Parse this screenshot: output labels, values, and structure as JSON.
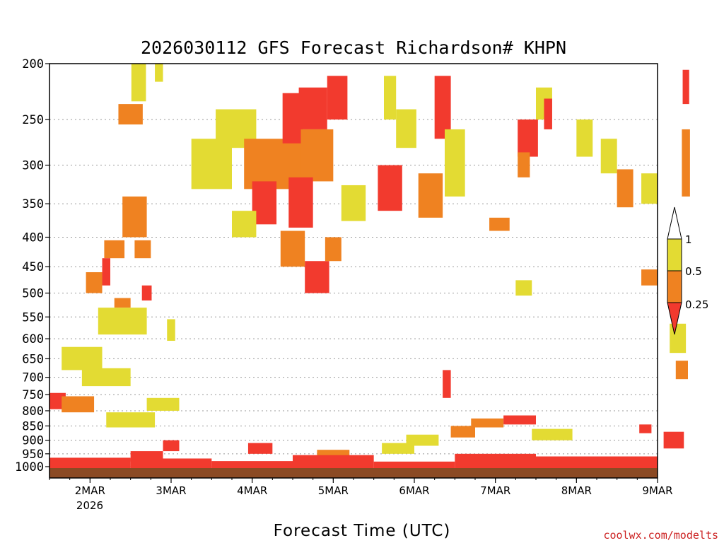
{
  "chart_data": {
    "type": "heatmap",
    "title": "2026030112 GFS Forecast Richardson# KHPN",
    "xlabel": "Forecast Time (UTC)",
    "ylabel": "",
    "credit": "coolwx.com/modelts",
    "x_range": [
      "2026-03-01T12",
      "2026-03-09T00"
    ],
    "x_ticks": [
      "2MAR",
      "3MAR",
      "4MAR",
      "5MAR",
      "6MAR",
      "7MAR",
      "8MAR",
      "9MAR"
    ],
    "x_tick_year": "2026",
    "y_ticks": [
      200,
      250,
      300,
      350,
      400,
      450,
      500,
      550,
      600,
      650,
      700,
      750,
      800,
      850,
      900,
      950,
      1000
    ],
    "y_range": [
      200,
      1000
    ],
    "y_scale": "log-pressure",
    "colorbar": {
      "ticks": [
        "1",
        "0.5",
        "0.25"
      ],
      "bins": [
        {
          "label": "<0.25",
          "color": "#f23a2e"
        },
        {
          "label": "0.25-0.5",
          "color": "#ef8221"
        },
        {
          "label": "0.5-1",
          "color": "#e3db33"
        },
        {
          "label": ">1",
          "color": "#ffffff"
        }
      ]
    },
    "ground_color": "#8b4a24",
    "grid": "dotted horizontal",
    "cells": [
      {
        "t": 1.1,
        "p": 215,
        "dt": 0.18,
        "dp": 35,
        "bin": "0.5-1"
      },
      {
        "t": 1.0,
        "p": 245,
        "dt": 0.3,
        "dp": 20,
        "bin": "0.25-0.5"
      },
      {
        "t": 1.35,
        "p": 205,
        "dt": 0.1,
        "dp": 20,
        "bin": "0.5-1"
      },
      {
        "t": 1.05,
        "p": 370,
        "dt": 0.3,
        "dp": 60,
        "bin": "0.25-0.5"
      },
      {
        "t": 0.8,
        "p": 420,
        "dt": 0.25,
        "dp": 30,
        "bin": "0.25-0.5"
      },
      {
        "t": 1.15,
        "p": 420,
        "dt": 0.2,
        "dp": 30,
        "bin": "0.25-0.5"
      },
      {
        "t": 0.55,
        "p": 480,
        "dt": 0.2,
        "dp": 40,
        "bin": "0.25-0.5"
      },
      {
        "t": 0.7,
        "p": 460,
        "dt": 0.1,
        "dp": 50,
        "bin": "<0.25"
      },
      {
        "t": 1.2,
        "p": 500,
        "dt": 0.12,
        "dp": 30,
        "bin": "<0.25"
      },
      {
        "t": 0.9,
        "p": 520,
        "dt": 0.2,
        "dp": 20,
        "bin": "0.25-0.5"
      },
      {
        "t": 0.9,
        "p": 560,
        "dt": 0.6,
        "dp": 60,
        "bin": "0.5-1"
      },
      {
        "t": 0.4,
        "p": 650,
        "dt": 0.5,
        "dp": 60,
        "bin": "0.5-1"
      },
      {
        "t": 0.7,
        "p": 700,
        "dt": 0.6,
        "dp": 50,
        "bin": "0.5-1"
      },
      {
        "t": 0.1,
        "p": 770,
        "dt": 0.2,
        "dp": 50,
        "bin": "<0.25"
      },
      {
        "t": 0.35,
        "p": 780,
        "dt": 0.4,
        "dp": 50,
        "bin": "0.25-0.5"
      },
      {
        "t": 1.0,
        "p": 830,
        "dt": 0.6,
        "dp": 50,
        "bin": "0.5-1"
      },
      {
        "t": 1.4,
        "p": 780,
        "dt": 0.4,
        "dp": 40,
        "bin": "0.5-1"
      },
      {
        "t": 1.5,
        "p": 920,
        "dt": 0.2,
        "dp": 40,
        "bin": "<0.25"
      },
      {
        "t": 1.2,
        "p": 960,
        "dt": 0.4,
        "dp": 40,
        "bin": "<0.25"
      },
      {
        "t": 2.0,
        "p": 300,
        "dt": 0.5,
        "dp": 60,
        "bin": "0.5-1"
      },
      {
        "t": 2.3,
        "p": 260,
        "dt": 0.5,
        "dp": 40,
        "bin": "0.5-1"
      },
      {
        "t": 2.8,
        "p": 300,
        "dt": 0.8,
        "dp": 60,
        "bin": "0.25-0.5"
      },
      {
        "t": 3.0,
        "p": 250,
        "dt": 0.25,
        "dp": 50,
        "bin": "<0.25"
      },
      {
        "t": 3.25,
        "p": 240,
        "dt": 0.35,
        "dp": 40,
        "bin": "<0.25"
      },
      {
        "t": 3.55,
        "p": 230,
        "dt": 0.25,
        "dp": 40,
        "bin": "<0.25"
      },
      {
        "t": 3.3,
        "p": 290,
        "dt": 0.4,
        "dp": 60,
        "bin": "0.25-0.5"
      },
      {
        "t": 2.65,
        "p": 350,
        "dt": 0.3,
        "dp": 60,
        "bin": "<0.25"
      },
      {
        "t": 3.1,
        "p": 350,
        "dt": 0.3,
        "dp": 70,
        "bin": "<0.25"
      },
      {
        "t": 2.4,
        "p": 380,
        "dt": 0.3,
        "dp": 40,
        "bin": "0.5-1"
      },
      {
        "t": 3.0,
        "p": 420,
        "dt": 0.3,
        "dp": 60,
        "bin": "0.25-0.5"
      },
      {
        "t": 3.3,
        "p": 470,
        "dt": 0.3,
        "dp": 60,
        "bin": "<0.25"
      },
      {
        "t": 3.5,
        "p": 420,
        "dt": 0.2,
        "dp": 40,
        "bin": "0.25-0.5"
      },
      {
        "t": 3.75,
        "p": 350,
        "dt": 0.3,
        "dp": 50,
        "bin": "0.5-1"
      },
      {
        "t": 4.2,
        "p": 330,
        "dt": 0.3,
        "dp": 60,
        "bin": "<0.25"
      },
      {
        "t": 4.4,
        "p": 260,
        "dt": 0.25,
        "dp": 40,
        "bin": "0.5-1"
      },
      {
        "t": 4.2,
        "p": 230,
        "dt": 0.15,
        "dp": 40,
        "bin": "0.5-1"
      },
      {
        "t": 4.7,
        "p": 340,
        "dt": 0.3,
        "dp": 60,
        "bin": "0.25-0.5"
      },
      {
        "t": 4.85,
        "p": 240,
        "dt": 0.2,
        "dp": 60,
        "bin": "<0.25"
      },
      {
        "t": 5.0,
        "p": 300,
        "dt": 0.25,
        "dp": 80,
        "bin": "0.5-1"
      },
      {
        "t": 5.55,
        "p": 380,
        "dt": 0.25,
        "dp": 20,
        "bin": "0.25-0.5"
      },
      {
        "t": 5.9,
        "p": 270,
        "dt": 0.25,
        "dp": 40,
        "bin": "<0.25"
      },
      {
        "t": 6.1,
        "p": 235,
        "dt": 0.2,
        "dp": 30,
        "bin": "0.5-1"
      },
      {
        "t": 5.85,
        "p": 300,
        "dt": 0.15,
        "dp": 30,
        "bin": "0.25-0.5"
      },
      {
        "t": 6.15,
        "p": 245,
        "dt": 0.1,
        "dp": 30,
        "bin": "<0.25"
      },
      {
        "t": 5.85,
        "p": 490,
        "dt": 0.2,
        "dp": 30,
        "bin": "0.5-1"
      },
      {
        "t": 6.6,
        "p": 270,
        "dt": 0.2,
        "dp": 40,
        "bin": "0.5-1"
      },
      {
        "t": 6.9,
        "p": 290,
        "dt": 0.2,
        "dp": 40,
        "bin": "0.5-1"
      },
      {
        "t": 7.1,
        "p": 330,
        "dt": 0.2,
        "dp": 50,
        "bin": "0.25-0.5"
      },
      {
        "t": 7.4,
        "p": 330,
        "dt": 0.2,
        "dp": 40,
        "bin": "0.5-1"
      },
      {
        "t": 7.4,
        "p": 470,
        "dt": 0.2,
        "dp": 30,
        "bin": "0.25-0.5"
      },
      {
        "t": 7.75,
        "p": 600,
        "dt": 0.2,
        "dp": 70,
        "bin": "0.5-1"
      },
      {
        "t": 7.8,
        "p": 680,
        "dt": 0.15,
        "dp": 50,
        "bin": "0.25-0.5"
      },
      {
        "t": 7.85,
        "p": 300,
        "dt": 0.1,
        "dp": 80,
        "bin": "0.25-0.5"
      },
      {
        "t": 7.85,
        "p": 220,
        "dt": 0.08,
        "dp": 30,
        "bin": "<0.25"
      },
      {
        "t": 7.7,
        "p": 900,
        "dt": 0.25,
        "dp": 60,
        "bin": "<0.25"
      },
      {
        "t": 7.35,
        "p": 860,
        "dt": 0.15,
        "dp": 30,
        "bin": "<0.25"
      },
      {
        "t": 4.3,
        "p": 930,
        "dt": 0.4,
        "dp": 40,
        "bin": "0.5-1"
      },
      {
        "t": 4.6,
        "p": 900,
        "dt": 0.4,
        "dp": 40,
        "bin": "0.5-1"
      },
      {
        "t": 5.1,
        "p": 870,
        "dt": 0.3,
        "dp": 40,
        "bin": "0.25-0.5"
      },
      {
        "t": 5.4,
        "p": 840,
        "dt": 0.4,
        "dp": 30,
        "bin": "0.25-0.5"
      },
      {
        "t": 5.8,
        "p": 830,
        "dt": 0.4,
        "dp": 30,
        "bin": "<0.25"
      },
      {
        "t": 6.2,
        "p": 880,
        "dt": 0.5,
        "dp": 40,
        "bin": "0.5-1"
      },
      {
        "t": 2.6,
        "p": 930,
        "dt": 0.3,
        "dp": 40,
        "bin": "<0.25"
      },
      {
        "t": 3.5,
        "p": 950,
        "dt": 0.4,
        "dp": 30,
        "bin": "0.25-0.5"
      },
      {
        "t": 1.5,
        "p": 580,
        "dt": 0.1,
        "dp": 50,
        "bin": "0.5-1"
      },
      {
        "t": 4.9,
        "p": 720,
        "dt": 0.1,
        "dp": 80,
        "bin": "<0.25"
      }
    ],
    "surface_band": [
      {
        "t": 0.0,
        "p": 965,
        "bin": "<0.25"
      },
      {
        "t": 1.0,
        "p": 968,
        "bin": "<0.25"
      },
      {
        "t": 2.0,
        "p": 978,
        "bin": "<0.25"
      },
      {
        "t": 3.0,
        "p": 955,
        "bin": "<0.25"
      },
      {
        "t": 4.0,
        "p": 980,
        "bin": "<0.25"
      },
      {
        "t": 5.0,
        "p": 950,
        "bin": "<0.25"
      },
      {
        "t": 6.0,
        "p": 960,
        "bin": "<0.25"
      },
      {
        "t": 7.5,
        "p": 962,
        "bin": "<0.25"
      }
    ]
  }
}
